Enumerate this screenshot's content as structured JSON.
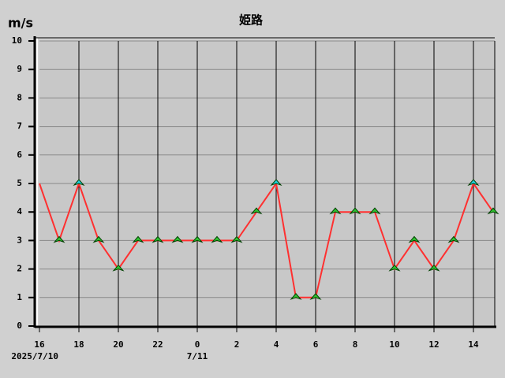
{
  "chart_data": {
    "type": "line",
    "title": "姫路",
    "y_label": "m/s",
    "categories": [
      "16",
      null,
      "18",
      null,
      "20",
      null,
      "22",
      null,
      "0",
      null,
      "2",
      null,
      "4",
      null,
      "6",
      null,
      "8",
      null,
      "10",
      null,
      "12",
      null,
      "14",
      null
    ],
    "date_labels": [
      {
        "index": 0,
        "label": "2025/7/10"
      },
      {
        "index": 8,
        "label": "7/11"
      }
    ],
    "series": [
      {
        "color": "#ff3030",
        "values": [
          5,
          3,
          5,
          3,
          2,
          3,
          3,
          3,
          3,
          3,
          3,
          4,
          5,
          1,
          1,
          4,
          4,
          4,
          2,
          3,
          2,
          3,
          5,
          4
        ]
      }
    ],
    "marker_colors": [
      null,
      "#30c030",
      "#20d0e0",
      "#30c030",
      "#30c030",
      "#30c030",
      "#30c030",
      "#30c030",
      "#30c030",
      "#30c030",
      "#30c030",
      "#30c030",
      "#20d0e0",
      "#30c030",
      "#30c030",
      "#30c030",
      "#30c030",
      "#30c030",
      "#30c030",
      "#30c030",
      "#30c030",
      "#30c030",
      "#20d0e0",
      "#30c030"
    ],
    "ylim": [
      0,
      10
    ],
    "yticks": [
      0,
      1,
      2,
      3,
      4,
      5,
      6,
      7,
      8,
      9,
      10
    ],
    "grid": true
  }
}
